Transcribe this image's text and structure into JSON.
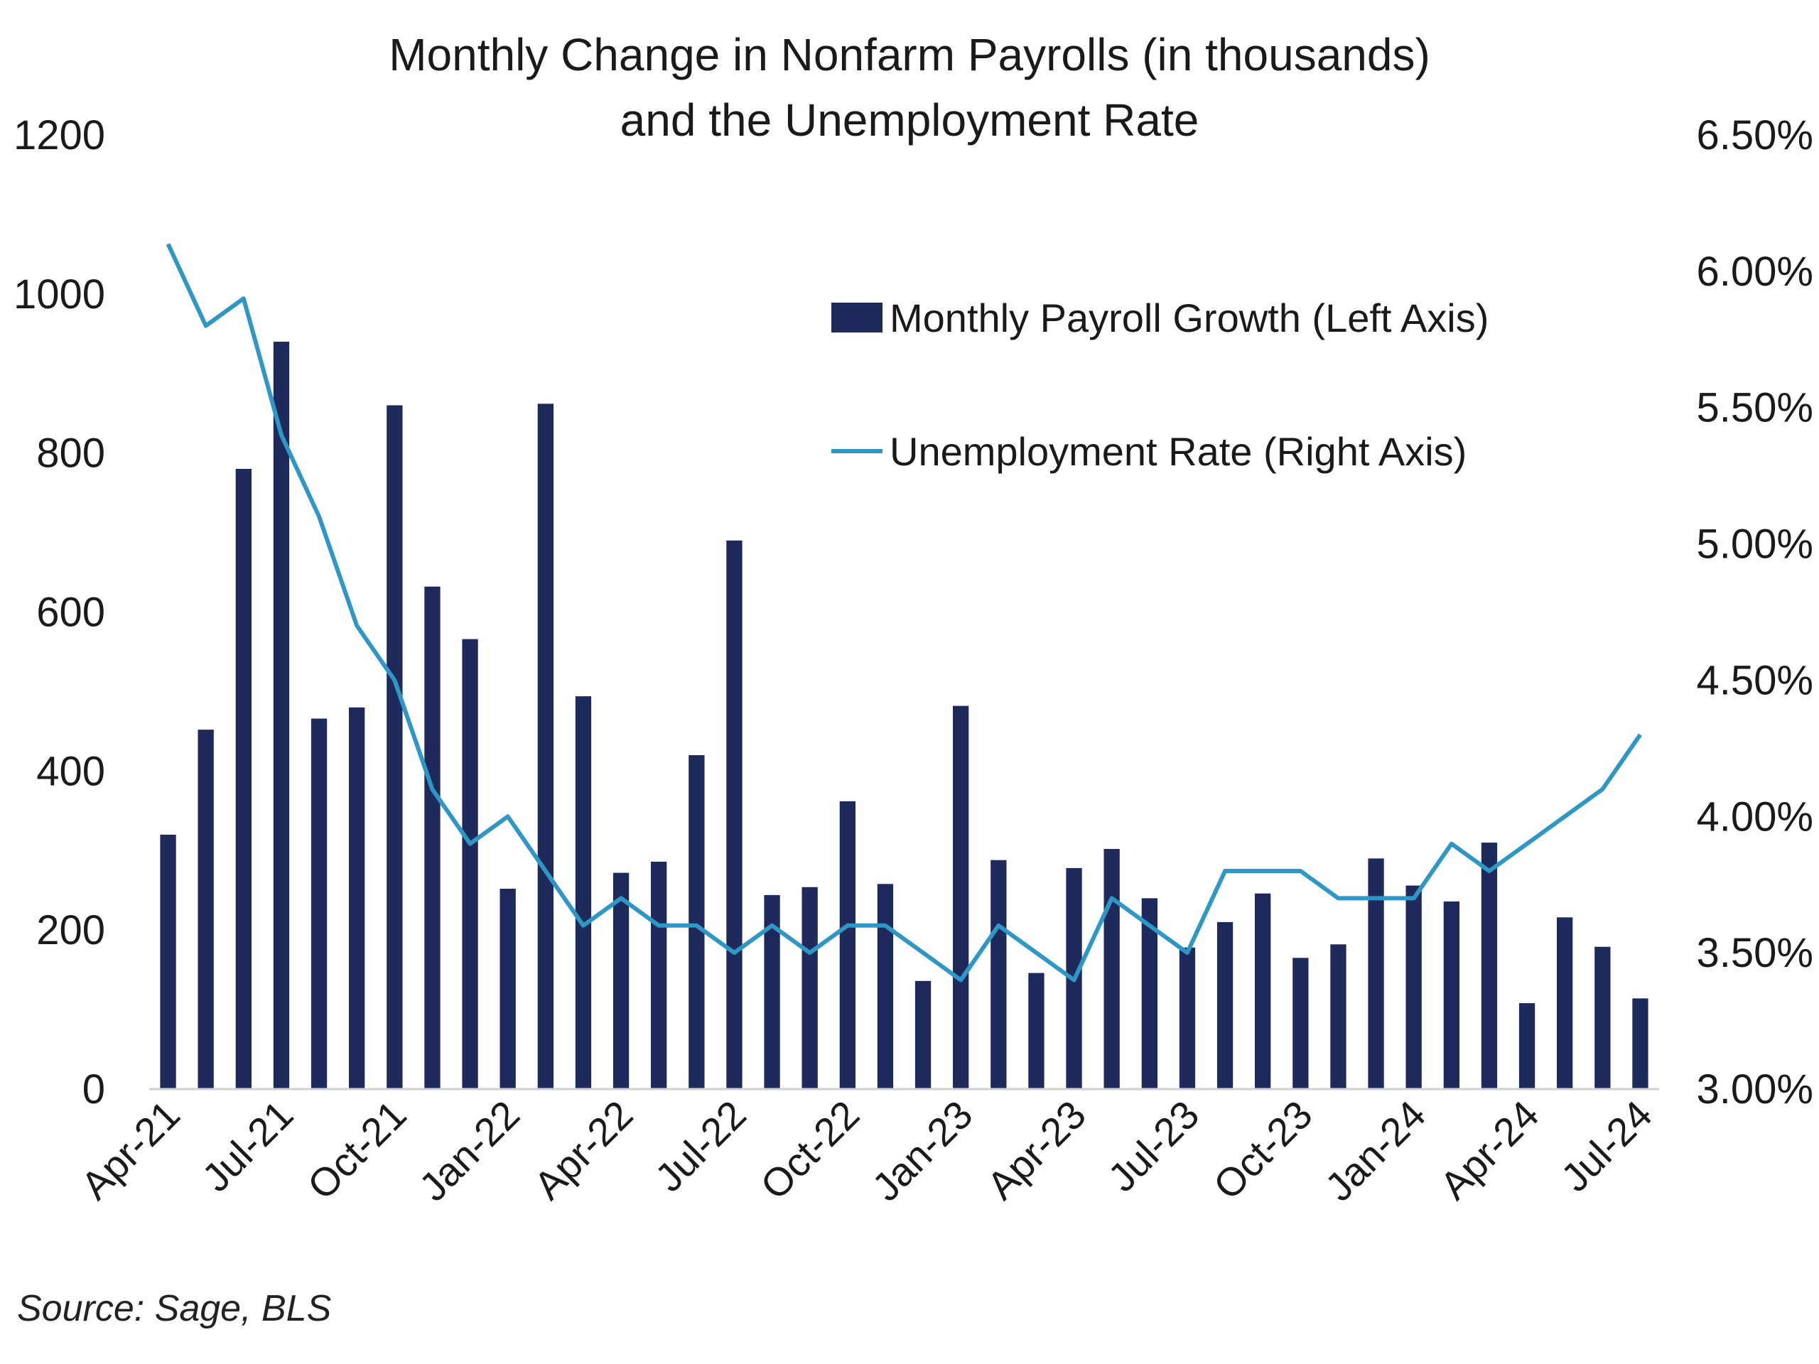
{
  "title_lines": [
    "Monthly Change in Nonfarm Payrolls (in thousands)",
    "and the Unemployment Rate"
  ],
  "source": "Source: Sage, BLS",
  "colors": {
    "bars": "#1f2a5c",
    "line": "#2f97c6",
    "axis": "#d0d0d0",
    "text": "#1a1a1a"
  },
  "chart_data": {
    "type": "bar",
    "title": "Monthly Change in Nonfarm Payrolls (in thousands) and the Unemployment Rate",
    "categories": [
      "Apr-21",
      "May-21",
      "Jun-21",
      "Jul-21",
      "Aug-21",
      "Sep-21",
      "Oct-21",
      "Nov-21",
      "Dec-21",
      "Jan-22",
      "Feb-22",
      "Mar-22",
      "Apr-22",
      "May-22",
      "Jun-22",
      "Jul-22",
      "Aug-22",
      "Sep-22",
      "Oct-22",
      "Nov-22",
      "Dec-22",
      "Jan-23",
      "Feb-23",
      "Mar-23",
      "Apr-23",
      "May-23",
      "Jun-23",
      "Jul-23",
      "Aug-23",
      "Sep-23",
      "Oct-23",
      "Nov-23",
      "Dec-23",
      "Jan-24",
      "Feb-24",
      "Mar-24",
      "Apr-24",
      "May-24",
      "Jun-24",
      "Jul-24"
    ],
    "x_tick_labels": [
      "Apr-21",
      "Jul-21",
      "Oct-21",
      "Jan-22",
      "Apr-22",
      "Jul-22",
      "Oct-22",
      "Jan-23",
      "Apr-23",
      "Jul-23",
      "Oct-23",
      "Jan-24",
      "Apr-24",
      "Jul-24"
    ],
    "series": [
      {
        "name": "Monthly Payroll Growth (Left Axis)",
        "type": "bar",
        "axis": "left",
        "values": [
          320,
          452,
          780,
          940,
          466,
          480,
          860,
          632,
          566,
          252,
          862,
          494,
          272,
          286,
          420,
          690,
          244,
          254,
          362,
          258,
          136,
          482,
          288,
          146,
          278,
          302,
          240,
          178,
          210,
          246,
          165,
          182,
          290,
          256,
          236,
          310,
          108,
          216,
          179,
          114
        ]
      },
      {
        "name": "Unemployment Rate (Right Axis)",
        "type": "line",
        "axis": "right",
        "values": [
          6.1,
          5.8,
          5.9,
          5.4,
          5.1,
          4.7,
          4.5,
          4.1,
          3.9,
          4.0,
          3.8,
          3.6,
          3.7,
          3.6,
          3.6,
          3.5,
          3.6,
          3.5,
          3.6,
          3.6,
          3.5,
          3.4,
          3.6,
          3.5,
          3.4,
          3.7,
          3.6,
          3.5,
          3.8,
          3.8,
          3.8,
          3.7,
          3.7,
          3.7,
          3.9,
          3.8,
          3.9,
          4.0,
          4.1,
          4.3
        ]
      }
    ],
    "left_axis": {
      "ylim": [
        0,
        1200
      ],
      "ticks": [
        "0",
        "200",
        "400",
        "600",
        "800",
        "1000",
        "1200"
      ]
    },
    "right_axis": {
      "ylim": [
        3.0,
        6.5
      ],
      "ticks": [
        "3.00%",
        "3.50%",
        "4.00%",
        "4.50%",
        "5.00%",
        "5.50%",
        "6.00%",
        "6.50%"
      ]
    },
    "grid": false,
    "legend": "top-right"
  }
}
